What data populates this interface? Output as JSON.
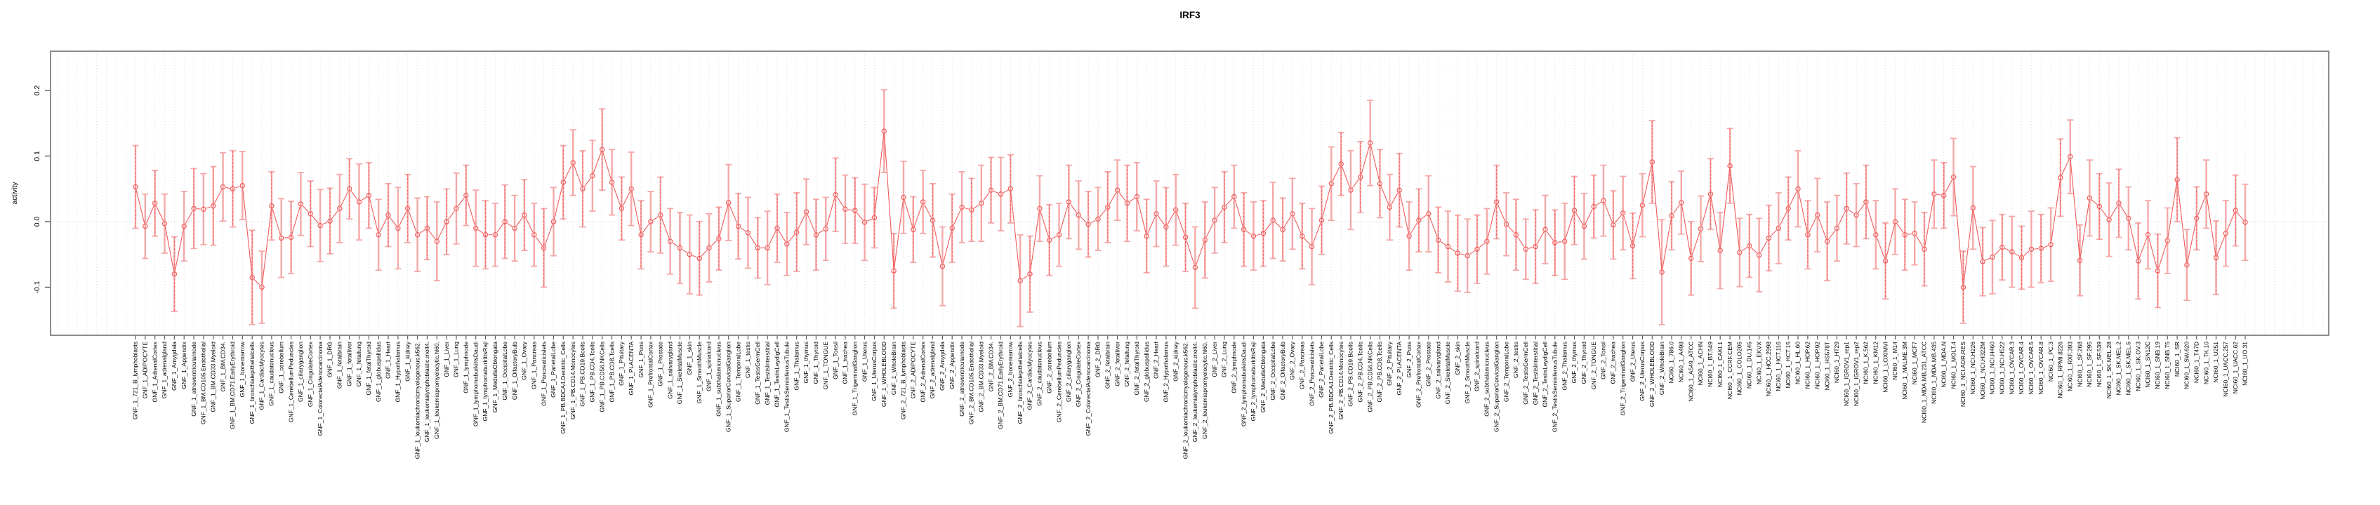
{
  "chart_data": {
    "type": "line",
    "subtype": "points-with-error-bars",
    "title": "IRF3",
    "ylabel": "activity",
    "xlabel": "",
    "ytick_labels": [
      "0.2",
      "0.1",
      "0.0",
      "-0.1"
    ],
    "ytick_values": [
      0.2,
      0.1,
      0.0,
      -0.1
    ],
    "ylim": [
      -0.173,
      0.26
    ],
    "zero_line": 0.0,
    "grid": "vertical-dotted",
    "legend_position": "none",
    "colors": {
      "point": "#f15b5b",
      "line": "#f15b5b",
      "errorbar_outer": "#f5a8a8",
      "errorbar_inner": "#ef5858",
      "gridline": "#d9d9d9",
      "zero_line_color": "#cfcfcf",
      "box": "#808080",
      "tick": "#5a5a5a",
      "text": "#000000"
    },
    "tissues": [
      "721_B_lymphoblasts",
      "ADIPOCYTE",
      "AdrenalCortex",
      "adrenalgland",
      "Amygdala",
      "Appendix",
      "atrioventricularnode",
      "BM.CD105.Endothelial",
      "BM.CD33.Myeloid",
      "BM.CD34.",
      "BM.CD71.EarlyErythroid",
      "bonemarrow",
      "bronchialepithelialcells",
      "CardiacMyocytes",
      "caudatenucleus",
      "cerebellum",
      "CerebellumPeduncles",
      "ciliaryganglion",
      "CingulateCortex",
      "ColorectalAdenocarcinoma",
      "DRG",
      "fetalbrain",
      "fetalliver",
      "fetallung",
      "fetalThyroid",
      "globuspallidus",
      "Heart",
      "Hypothalamus",
      "kidney",
      "leukemiachronicmyelogenous.k562.",
      "leukemialymphoblastic.molt4.",
      "leukemiapromyelocytic.hl60.",
      "Liver",
      "Lung",
      "lymphnode",
      "lymphomaburkittsDaudi",
      "lymphomaburkittsRaji",
      "MedullaOblongata",
      "OccipitalLobe",
      "OlfactoryBulb",
      "Ovary",
      "Pancreas",
      "Pancreaticislets",
      "ParietalLobe",
      "PB.BDCA4.Dentritic_Cells",
      "PB.CD14.Monocytes",
      "PB.CD19.Bcells",
      "PB.CD4.Tcells",
      "PB.CD56.NKCells",
      "PB.CD8.Tcells",
      "Pituitary",
      "PLACENTA",
      "Pons",
      "PrefrontalCortex",
      "Prostate",
      "salivarygland",
      "SkeletalMuscle",
      "skin",
      "SmoothMuscle",
      "spinalcord",
      "subthalamicnucleus",
      "SuperiorCervicalGanglion",
      "TemporalLobe",
      "testis",
      "TestisGermCell",
      "TestisInterstitial",
      "TestisLeydigCell",
      "TestisSeminiferousTubule",
      "Thalamus",
      "thymus",
      "Thyroid",
      "TONGUE",
      "Tonsil",
      "trachea",
      "TrigeminalGanglion",
      "Uterus",
      "UterusCorpus",
      "WHOLEBLOOD",
      "WholeBrain"
    ],
    "cell_lines": [
      "786.0",
      "A498",
      "A549_ATCC",
      "ACHN",
      "BT.549",
      "CAKI.1",
      "CCRF.CEM",
      "COLO205",
      "DU.145",
      "EKVX",
      "HCC.2998",
      "HCT.116",
      "HCT.15",
      "HL.60",
      "HOP.62",
      "HOP.92",
      "HS578T",
      "HT29",
      "IGROV1_rep1",
      "IGROV1_rep2",
      "K.562",
      "KM12",
      "LOXIMVI",
      "M14",
      "MALME.3M",
      "MCF7",
      "MDA.MB.231_ATCC",
      "MDA.MB.435",
      "MDA.N",
      "MOLT.4",
      "NCI.ADR.RES",
      "NCI.H226",
      "NCI.H322M",
      "NCI.H460",
      "NCI.H522",
      "OVCAR.3",
      "OVCAR.4",
      "OVCAR.5",
      "OVCAR.8",
      "PC.3",
      "RPMI.8226",
      "RXF.393",
      "SF.268",
      "SF.295",
      "SF.539",
      "SK.MEL.28",
      "SK.MEL.2",
      "SK.MEL.5",
      "SK.OV.3",
      "SN12C",
      "SNB.19",
      "SNB.75",
      "SR",
      "SW.620",
      "T47D",
      "TK.10",
      "U251",
      "UACC.257",
      "UACC.62",
      "UO.31"
    ],
    "groups": [
      {
        "prefix": "GNF_1_",
        "labels_ref": "tissues",
        "values": [
          0.053,
          -0.007,
          0.028,
          -0.003,
          -0.08,
          -0.007,
          0.02,
          0.019,
          0.024,
          0.053,
          0.05,
          0.055,
          -0.085,
          -0.1,
          0.024,
          -0.025,
          -0.024,
          0.027,
          0.012,
          -0.006,
          0.001,
          0.02,
          0.05,
          0.03,
          0.04,
          -0.02,
          0.01,
          -0.01,
          0.02,
          -0.02,
          -0.01,
          -0.03,
          0.0,
          0.02,
          0.04,
          -0.01,
          -0.02,
          -0.02,
          0.0,
          -0.01,
          0.01,
          -0.02,
          -0.04,
          0.0,
          0.06,
          0.09,
          0.05,
          0.07,
          0.11,
          0.06,
          0.02,
          0.05,
          -0.02,
          0.0,
          0.01,
          -0.03,
          -0.04,
          -0.05,
          -0.056,
          -0.04,
          -0.026,
          0.029,
          -0.007,
          -0.017,
          -0.04,
          -0.04,
          -0.01,
          -0.034,
          -0.016,
          0.015,
          -0.02,
          -0.011,
          0.041,
          0.019,
          0.017,
          -0.001,
          0.006,
          0.138,
          -0.075
        ],
        "errors": [
          0.063,
          0.049,
          0.05,
          0.045,
          0.057,
          0.053,
          0.061,
          0.054,
          0.06,
          0.052,
          0.058,
          0.052,
          0.072,
          0.055,
          0.052,
          0.06,
          0.055,
          0.048,
          0.05,
          0.055,
          0.05,
          0.052,
          0.046,
          0.058,
          0.05,
          0.054,
          0.048,
          0.062,
          0.052,
          0.056,
          0.048,
          0.06,
          0.05,
          0.054,
          0.046,
          0.058,
          0.052,
          0.048,
          0.056,
          0.05,
          0.054,
          0.048,
          0.06,
          0.052,
          0.056,
          0.05,
          0.058,
          0.054,
          0.062,
          0.05,
          0.048,
          0.056,
          0.052,
          0.046,
          0.058,
          0.05,
          0.054,
          0.06,
          0.056,
          0.052,
          0.048,
          0.058,
          0.05,
          0.054,
          0.046,
          0.056,
          0.052,
          0.048,
          0.06,
          0.05,
          0.054,
          0.048,
          0.056,
          0.052,
          0.05,
          0.058,
          0.046,
          0.063,
          0.057
        ]
      },
      {
        "prefix": "GNF_2_",
        "labels_ref": "tissues",
        "values": [
          0.037,
          -0.012,
          0.03,
          0.002,
          -0.068,
          -0.01,
          0.022,
          0.018,
          0.028,
          0.048,
          0.042,
          0.05,
          -0.09,
          -0.08,
          0.02,
          -0.028,
          -0.02,
          0.03,
          0.01,
          -0.004,
          0.004,
          0.022,
          0.048,
          0.028,
          0.038,
          -0.022,
          0.012,
          -0.008,
          0.018,
          -0.024,
          -0.07,
          -0.028,
          0.002,
          0.022,
          0.038,
          -0.012,
          -0.022,
          -0.018,
          0.002,
          -0.012,
          0.012,
          -0.022,
          -0.038,
          0.002,
          0.058,
          0.088,
          0.048,
          0.068,
          0.12,
          0.058,
          0.022,
          0.048,
          -0.022,
          0.002,
          0.012,
          -0.028,
          -0.038,
          -0.048,
          -0.052,
          -0.042,
          -0.03,
          0.03,
          -0.004,
          -0.02,
          -0.042,
          -0.038,
          -0.012,
          -0.032,
          -0.03,
          0.017,
          -0.007,
          0.023,
          0.032,
          -0.005,
          0.013,
          -0.037,
          0.025,
          0.091,
          -0.077
        ],
        "errors": [
          0.055,
          0.05,
          0.048,
          0.056,
          0.06,
          0.052,
          0.054,
          0.048,
          0.058,
          0.05,
          0.056,
          0.052,
          0.07,
          0.058,
          0.05,
          0.054,
          0.048,
          0.056,
          0.052,
          0.05,
          0.048,
          0.054,
          0.046,
          0.058,
          0.052,
          0.056,
          0.05,
          0.06,
          0.054,
          0.052,
          0.062,
          0.058,
          0.05,
          0.054,
          0.048,
          0.056,
          0.052,
          0.05,
          0.058,
          0.048,
          0.054,
          0.05,
          0.058,
          0.052,
          0.056,
          0.048,
          0.06,
          0.054,
          0.065,
          0.052,
          0.05,
          0.056,
          0.052,
          0.048,
          0.058,
          0.05,
          0.054,
          0.058,
          0.056,
          0.052,
          0.05,
          0.056,
          0.048,
          0.054,
          0.046,
          0.056,
          0.052,
          0.05,
          0.058,
          0.052,
          0.05,
          0.048,
          0.054,
          0.052,
          0.056,
          0.05,
          0.048,
          0.063,
          0.08
        ]
      },
      {
        "prefix": "NCI60_1_",
        "labels_ref": "cell_lines",
        "values": [
          0.009,
          0.029,
          -0.056,
          -0.011,
          0.042,
          -0.044,
          0.085,
          -0.047,
          -0.037,
          -0.051,
          -0.025,
          -0.01,
          0.02,
          0.05,
          -0.02,
          0.01,
          -0.03,
          -0.01,
          0.02,
          0.01,
          0.03,
          -0.02,
          -0.06,
          0.0,
          -0.02,
          -0.018,
          -0.042,
          0.042,
          0.04,
          0.068,
          -0.1,
          0.021,
          -0.061,
          -0.054,
          -0.039,
          -0.046,
          -0.055,
          -0.042,
          -0.041,
          -0.035,
          0.067,
          0.099,
          -0.059,
          0.036,
          0.023,
          0.003,
          0.028,
          0.005,
          -0.06,
          -0.02,
          -0.075,
          -0.029,
          0.064,
          -0.066,
          0.005,
          0.042,
          -0.055,
          -0.018,
          0.017,
          -0.001
        ],
        "errors": [
          0.052,
          0.048,
          0.056,
          0.05,
          0.054,
          0.058,
          0.057,
          0.052,
          0.048,
          0.056,
          0.05,
          0.054,
          0.048,
          0.058,
          0.052,
          0.056,
          0.06,
          0.05,
          0.054,
          0.048,
          0.056,
          0.052,
          0.058,
          0.05,
          0.054,
          0.048,
          0.056,
          0.052,
          0.05,
          0.059,
          0.055,
          0.063,
          0.052,
          0.056,
          0.05,
          0.054,
          0.048,
          0.058,
          0.052,
          0.056,
          0.059,
          0.056,
          0.054,
          0.058,
          0.05,
          0.056,
          0.052,
          0.048,
          0.058,
          0.052,
          0.056,
          0.05,
          0.064,
          0.054,
          0.048,
          0.052,
          0.056,
          0.05,
          0.054,
          0.058
        ]
      }
    ]
  }
}
